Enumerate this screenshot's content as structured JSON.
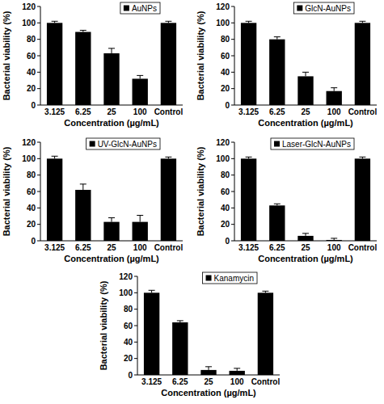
{
  "chart_data": [
    {
      "type": "bar",
      "x_label": "Concentration (µg/mL)",
      "y_label": "Bacterial viability (%)",
      "categories": [
        "3.125",
        "6.25",
        "25",
        "100",
        "Control"
      ],
      "series": [
        {
          "name": "AuNPs",
          "color": "#000000",
          "values": [
            100,
            89,
            63,
            32,
            100
          ],
          "errors": [
            2,
            2,
            6,
            4,
            2
          ]
        }
      ],
      "ylim": [
        0,
        120
      ],
      "yticks": [
        0,
        20,
        40,
        60,
        80,
        100,
        120
      ],
      "legend": "top-right"
    },
    {
      "type": "bar",
      "x_label": "Concentration (µg/mL)",
      "y_label": "Bacterial viability (%)",
      "categories": [
        "3.125",
        "6.25",
        "25",
        "100",
        "Control"
      ],
      "series": [
        {
          "name": "GlcN-AuNPs",
          "color": "#000000",
          "values": [
            100,
            80,
            35,
            17,
            100
          ],
          "errors": [
            2,
            3,
            5,
            4,
            2
          ]
        }
      ],
      "ylim": [
        0,
        120
      ],
      "yticks": [
        0,
        20,
        40,
        60,
        80,
        100,
        120
      ],
      "legend": "top-right"
    },
    {
      "type": "bar",
      "x_label": "Concentration (µg/mL)",
      "y_label": "Bacterial viability (%)",
      "categories": [
        "3.125",
        "6.25",
        "25",
        "100",
        "Control"
      ],
      "series": [
        {
          "name": "UV-GlcN-AuNPs",
          "color": "#000000",
          "values": [
            100,
            62,
            23,
            23,
            100
          ],
          "errors": [
            3,
            7,
            5,
            8,
            2
          ]
        }
      ],
      "ylim": [
        0,
        120
      ],
      "yticks": [
        0,
        20,
        40,
        60,
        80,
        100,
        120
      ],
      "legend": "top-right"
    },
    {
      "type": "bar",
      "x_label": "Concentration (µg/mL)",
      "y_label": "Bacterial viability (%)",
      "categories": [
        "3.125",
        "6.25",
        "25",
        "100",
        "Control"
      ],
      "series": [
        {
          "name": "Laser-GlcN-AuNPs",
          "color": "#000000",
          "values": [
            100,
            43,
            6,
            1,
            100
          ],
          "errors": [
            2,
            2,
            3,
            2,
            2
          ]
        }
      ],
      "ylim": [
        0,
        120
      ],
      "yticks": [
        0,
        20,
        40,
        60,
        80,
        100,
        120
      ],
      "legend": "top-right"
    },
    {
      "type": "bar",
      "x_label": "Concentration (µg/mL)",
      "y_label": "Bacterial viability (%)",
      "categories": [
        "3.125",
        "6.25",
        "25",
        "100",
        "Control"
      ],
      "series": [
        {
          "name": "Kanamycin",
          "color": "#000000",
          "values": [
            100,
            64,
            6,
            5,
            100
          ],
          "errors": [
            3,
            2,
            4,
            3,
            2
          ]
        }
      ],
      "ylim": [
        0,
        120
      ],
      "yticks": [
        0,
        20,
        40,
        60,
        80,
        100,
        120
      ],
      "legend": "top-right"
    }
  ]
}
